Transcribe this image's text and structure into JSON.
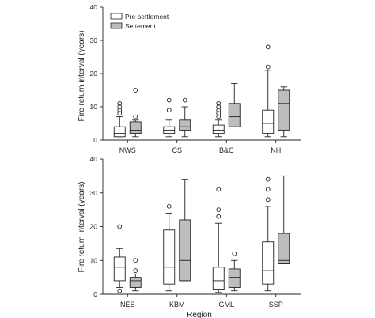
{
  "colors": {
    "pre_fill": "#ffffff",
    "post_fill": "#bdbdbd",
    "stroke": "#222222"
  },
  "legend": {
    "pre_label": "Pre-settlement",
    "post_label": "Settement"
  },
  "chart_data": [
    {
      "type": "box",
      "title": "",
      "xlabel": "",
      "ylabel": "Fire return interval (years)",
      "ylim": [
        0,
        40
      ],
      "yticks": [
        "0",
        "10",
        "20",
        "30",
        "40"
      ],
      "legend_position": "top-left",
      "categories": [
        "NWS",
        "CS",
        "B&C",
        "NH"
      ],
      "series": [
        {
          "name": "Pre-settlement",
          "boxes": [
            {
              "whisker_low": 1,
              "q1": 1,
              "median": 2,
              "q3": 4,
              "whisker_high": 7,
              "outliers": [
                8,
                9,
                10,
                11
              ]
            },
            {
              "whisker_low": 1,
              "q1": 2,
              "median": 3,
              "q3": 4,
              "whisker_high": 6,
              "outliers": [
                9,
                12
              ]
            },
            {
              "whisker_low": 1,
              "q1": 2,
              "median": 3,
              "q3": 4.5,
              "whisker_high": 6,
              "outliers": [
                7,
                8,
                9,
                10,
                11
              ]
            },
            {
              "whisker_low": 1,
              "q1": 2,
              "median": 5,
              "q3": 9,
              "whisker_high": 21,
              "outliers": [
                22,
                28
              ]
            }
          ]
        },
        {
          "name": "Settement",
          "boxes": [
            {
              "whisker_low": 1,
              "q1": 2,
              "median": 3,
              "q3": 5.5,
              "whisker_high": 6,
              "outliers": [
                7,
                15
              ]
            },
            {
              "whisker_low": 1,
              "q1": 3,
              "median": 4,
              "q3": 6,
              "whisker_high": 10,
              "outliers": [
                12
              ]
            },
            {
              "whisker_low": 4,
              "q1": 4,
              "median": 7,
              "q3": 11,
              "whisker_high": 17,
              "outliers": []
            },
            {
              "whisker_low": 1,
              "q1": 3,
              "median": 11,
              "q3": 15,
              "whisker_high": 16,
              "outliers": []
            }
          ]
        }
      ]
    },
    {
      "type": "box",
      "title": "",
      "xlabel": "Region",
      "ylabel": "Fire return interval (years)",
      "ylim": [
        0,
        40
      ],
      "yticks": [
        "0",
        "10",
        "20",
        "30",
        "40"
      ],
      "categories": [
        "NES",
        "KBM",
        "GML",
        "SSP"
      ],
      "series": [
        {
          "name": "Pre-settlement",
          "boxes": [
            {
              "whisker_low": 2,
              "q1": 4,
              "median": 8,
              "q3": 11,
              "whisker_high": 13.5,
              "outliers": [
                1,
                20
              ]
            },
            {
              "whisker_low": 1,
              "q1": 3,
              "median": 8,
              "q3": 19,
              "whisker_high": 24,
              "outliers": [
                26
              ]
            },
            {
              "whisker_low": 0.5,
              "q1": 1.5,
              "median": 4,
              "q3": 8,
              "whisker_high": 21,
              "outliers": [
                23,
                25,
                31
              ]
            },
            {
              "whisker_low": 1,
              "q1": 3,
              "median": 7,
              "q3": 15.5,
              "whisker_high": 26,
              "outliers": [
                28,
                31,
                34
              ]
            }
          ]
        },
        {
          "name": "Settement",
          "boxes": [
            {
              "whisker_low": 1,
              "q1": 2,
              "median": 4,
              "q3": 5,
              "whisker_high": 6,
              "outliers": [
                7,
                10
              ]
            },
            {
              "whisker_low": 4,
              "q1": 4,
              "median": 10,
              "q3": 22,
              "whisker_high": 34,
              "outliers": []
            },
            {
              "whisker_low": 1,
              "q1": 2,
              "median": 5,
              "q3": 7.5,
              "whisker_high": 10,
              "outliers": [
                12
              ]
            },
            {
              "whisker_low": 9,
              "q1": 9,
              "median": 10,
              "q3": 18,
              "whisker_high": 35,
              "outliers": []
            }
          ]
        }
      ]
    }
  ]
}
